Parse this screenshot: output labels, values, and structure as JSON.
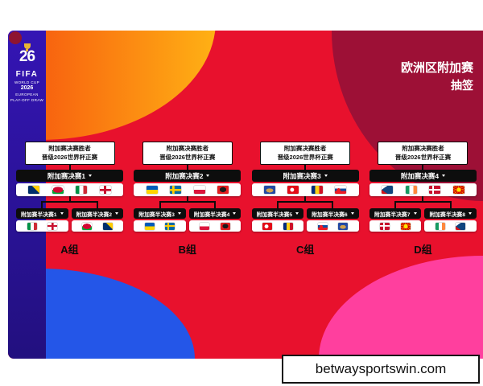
{
  "title": {
    "line1": "欧洲区附加赛",
    "line2": "抽签"
  },
  "branding": {
    "logo_number": "26",
    "fifa": "FIFA",
    "world_cup": "WORLD CUP",
    "year": "2026",
    "european": "EUROPEAN",
    "playoff_draw": "PLAY-OFF DRAW"
  },
  "qualify_note": {
    "line1": "附加赛决赛胜者",
    "line2": "晋级2026世界杯正赛"
  },
  "brackets": [
    {
      "group": "A组",
      "final": {
        "label": "附加赛决赛1",
        "flags": [
          "bosnia",
          "wales",
          "italy",
          "northern-ireland"
        ]
      },
      "semis": [
        {
          "label": "附加赛半决赛1",
          "flags": [
            "italy",
            "northern-ireland"
          ]
        },
        {
          "label": "附加赛半决赛2",
          "flags": [
            "wales",
            "bosnia"
          ]
        }
      ]
    },
    {
      "group": "B组",
      "final": {
        "label": "附加赛决赛2",
        "flags": [
          "ukraine",
          "sweden",
          "poland",
          "albania"
        ]
      },
      "semis": [
        {
          "label": "附加赛半决赛3",
          "flags": [
            "ukraine",
            "sweden"
          ]
        },
        {
          "label": "附加赛半决赛4",
          "flags": [
            "poland",
            "albania"
          ]
        }
      ]
    },
    {
      "group": "C组",
      "final": {
        "label": "附加赛决赛3",
        "flags": [
          "kosovo",
          "turkey",
          "romania",
          "slovakia"
        ]
      },
      "semis": [
        {
          "label": "附加赛半决赛5",
          "flags": [
            "turkey",
            "romania"
          ]
        },
        {
          "label": "附加赛半决赛6",
          "flags": [
            "slovakia",
            "kosovo"
          ]
        }
      ]
    },
    {
      "group": "D组",
      "final": {
        "label": "附加赛决赛4",
        "flags": [
          "czechia",
          "ireland",
          "denmark",
          "north-macedonia"
        ]
      },
      "semis": [
        {
          "label": "附加赛半决赛7",
          "flags": [
            "denmark",
            "north-macedonia"
          ]
        },
        {
          "label": "附加赛半决赛8",
          "flags": [
            "ireland",
            "czechia"
          ]
        }
      ]
    }
  ],
  "watermark": "betwaysportswin.com",
  "colors": {
    "field_red": "#e8112d",
    "crimson": "#9d1036",
    "orange": "#ff8a00",
    "indigo_band": "#2b16a0",
    "blue": "#2456e8",
    "pink": "#ff3f9e"
  }
}
